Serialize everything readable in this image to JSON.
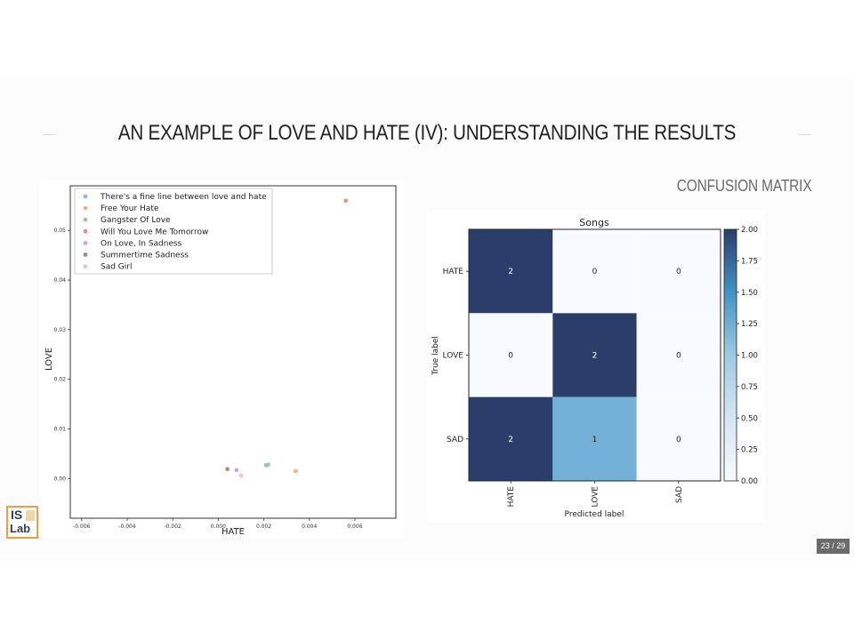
{
  "slide": {
    "title": "AN EXAMPLE OF LOVE AND HATE (IV): UNDERSTANDING THE RESULTS",
    "section_heading": "CONFUSION MATRIX",
    "page_number": "23 / 29",
    "logo": {
      "line1": "IS",
      "line2": "Lab"
    }
  },
  "colors": {
    "heat_high": "#2b3d6b",
    "heat_mid": "#74b1d9",
    "heat_low": "#f7fbff"
  },
  "chart_data": [
    {
      "type": "scatter",
      "xlabel": "HATE",
      "ylabel": "LOVE",
      "xlim": [
        -0.0065,
        0.0078
      ],
      "ylim": [
        -0.008,
        0.059
      ],
      "xticks": [
        "-0.006",
        "-0.004",
        "-0.002",
        "0.000",
        "0.002",
        "0.004",
        "0.006"
      ],
      "yticks": [
        "0.00",
        "0.01",
        "0.02",
        "0.03",
        "0.04",
        "0.05"
      ],
      "legend_position": "top-left",
      "series": [
        {
          "name": "There's a fine line between love and hate",
          "color": "#8ab6e0",
          "points": [
            [
              0.0021,
              0.0027
            ]
          ]
        },
        {
          "name": "Free Your Hate",
          "color": "#f0b27a",
          "points": [
            [
              0.0034,
              0.0015
            ]
          ]
        },
        {
          "name": "Gangster Of Love",
          "color": "#8fd18f",
          "points": [
            [
              0.0022,
              0.0028
            ]
          ]
        },
        {
          "name": "Will You Love Me Tomorrow",
          "color": "#e88a8a",
          "points": [
            [
              0.0056,
              0.056
            ]
          ]
        },
        {
          "name": "On Love, In Sadness",
          "color": "#c3a8dc",
          "points": [
            [
              0.0008,
              0.0017
            ]
          ]
        },
        {
          "name": "Summertime Sadness",
          "color": "#a08a86",
          "points": [
            [
              0.0004,
              0.0019
            ]
          ]
        },
        {
          "name": "Sad Girl",
          "color": "#f4b8dc",
          "points": [
            [
              0.001,
              0.0006
            ]
          ]
        }
      ]
    },
    {
      "type": "heatmap",
      "title": "Songs",
      "xlabel": "Predicted label",
      "ylabel": "True label",
      "x_categories": [
        "HATE",
        "LOVE",
        "SAD"
      ],
      "y_categories": [
        "HATE",
        "LOVE",
        "SAD"
      ],
      "values": [
        [
          2,
          0,
          0
        ],
        [
          0,
          2,
          0
        ],
        [
          2,
          1,
          0
        ]
      ],
      "colorbar_range": [
        0,
        2
      ],
      "colorbar_ticks": [
        "0.00",
        "0.25",
        "0.50",
        "0.75",
        "1.00",
        "1.25",
        "1.50",
        "1.75",
        "2.00"
      ]
    }
  ]
}
